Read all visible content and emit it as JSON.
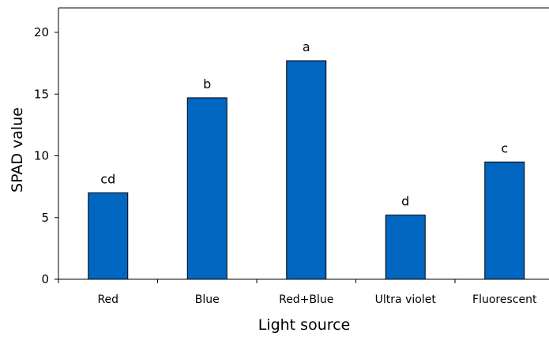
{
  "chart_data": {
    "type": "bar",
    "title": "",
    "xlabel": "Light source",
    "ylabel": "SPAD value",
    "categories": [
      "Red",
      "Blue",
      "Red+Blue",
      "Ultra violet",
      "Fluorescent"
    ],
    "values": [
      7.0,
      14.7,
      17.7,
      5.2,
      9.5
    ],
    "annotations": [
      "cd",
      "b",
      "a",
      "d",
      "c"
    ],
    "ylim": [
      0,
      22
    ],
    "yticks": [
      "0",
      "5",
      "10",
      "15",
      "20"
    ],
    "grid": false,
    "legend": "none",
    "bar_color": "#0066c0",
    "bar_edge_color": "#000000"
  }
}
